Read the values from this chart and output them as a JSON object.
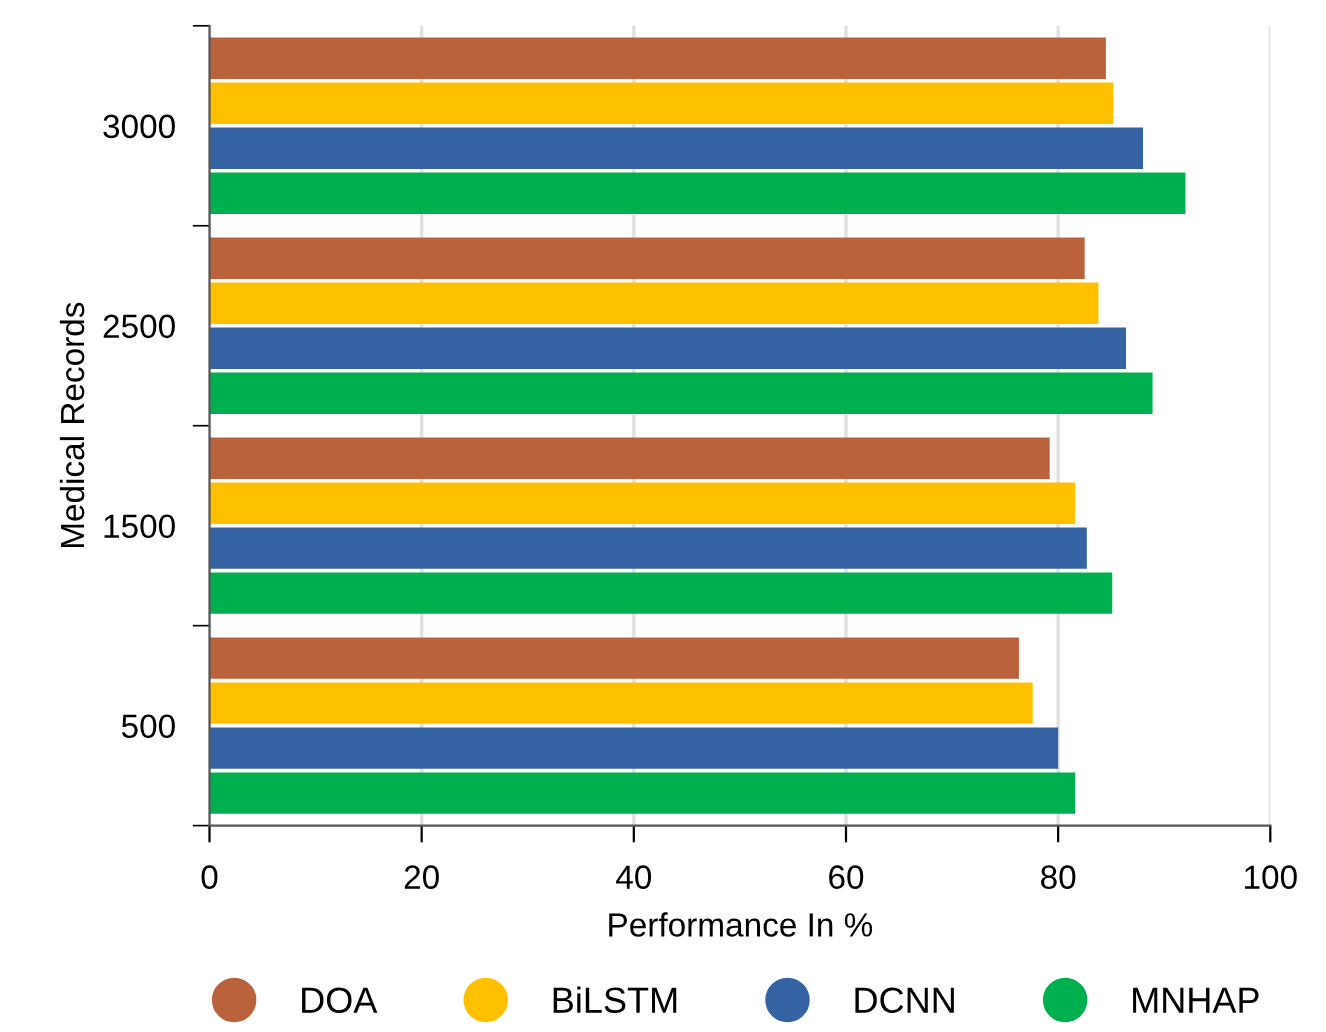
{
  "chart_data": {
    "type": "bar",
    "orientation": "horizontal",
    "xlabel": "Performance In %",
    "ylabel": "Medical Records",
    "categories": [
      "3000",
      "2500",
      "1500",
      "500"
    ],
    "series": [
      {
        "name": "DOA",
        "color": "#b9623b",
        "values": [
          84.5,
          82.5,
          79.2,
          76.3
        ]
      },
      {
        "name": "BiLSTM",
        "color": "#ffc000",
        "values": [
          85.2,
          83.8,
          81.6,
          77.6
        ]
      },
      {
        "name": "DCNN",
        "color": "#3462a3",
        "values": [
          88.0,
          86.4,
          82.7,
          80.0
        ]
      },
      {
        "name": "MNHAP",
        "color": "#00b04f",
        "values": [
          92.0,
          88.9,
          85.1,
          81.6
        ]
      }
    ],
    "xlim": [
      0,
      100
    ],
    "xticks": [
      0,
      20,
      40,
      60,
      80,
      100
    ],
    "grid": "x",
    "legend": "bottom",
    "marker": "circle"
  }
}
